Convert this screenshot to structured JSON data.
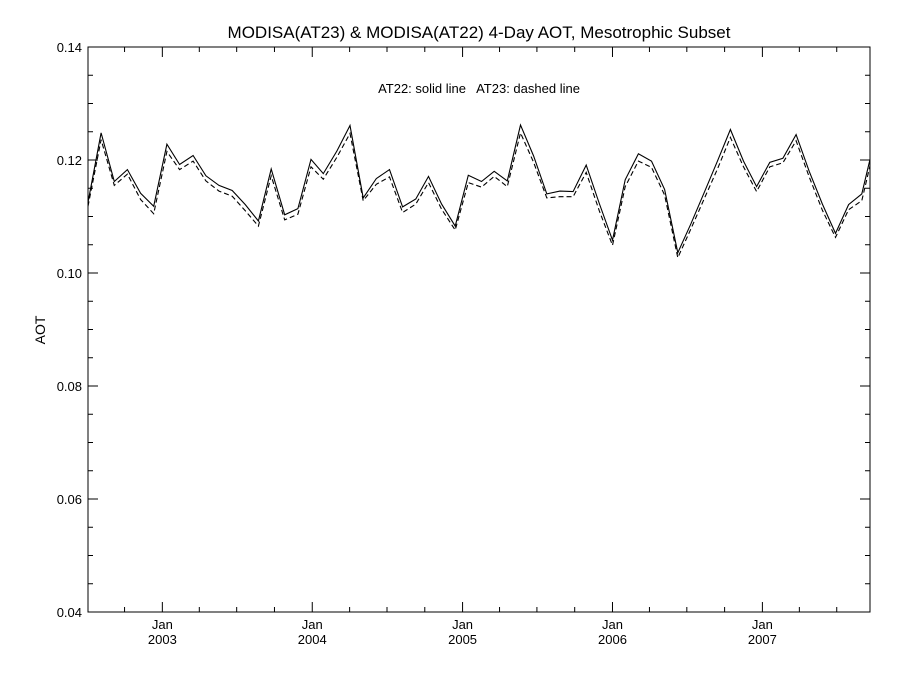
{
  "chart_data": {
    "type": "line",
    "title": "MODISA(AT23) & MODISA(AT22) 4-Day AOT, Mesotrophic Subset",
    "ylabel": "AOT",
    "xlabel": "",
    "annotation": "AT22: solid line   AT23: dashed line",
    "ylim": [
      0.04,
      0.14
    ],
    "xlim": [
      "2002-07-04",
      "2007-09-20"
    ],
    "y_ticks": [
      "0.04",
      "0.06",
      "0.08",
      "0.10",
      "0.12",
      "0.14"
    ],
    "x_ticks": [
      {
        "month": "Jan",
        "year": "2003",
        "date": "2003-01-01"
      },
      {
        "month": "Jan",
        "year": "2004",
        "date": "2004-01-01"
      },
      {
        "month": "Jan",
        "year": "2005",
        "date": "2005-01-01"
      },
      {
        "month": "Jan",
        "year": "2006",
        "date": "2006-01-01"
      },
      {
        "month": "Jan",
        "year": "2007",
        "date": "2007-01-01"
      }
    ],
    "grid": false,
    "legend": "none",
    "x": [
      "2002-07-04",
      "2002-08-05",
      "2002-09-06",
      "2002-10-08",
      "2002-11-09",
      "2002-12-11",
      "2003-01-12",
      "2003-02-12",
      "2003-03-17",
      "2003-04-17",
      "2003-05-19",
      "2003-06-20",
      "2003-07-22",
      "2003-08-23",
      "2003-09-23",
      "2003-10-26",
      "2003-11-27",
      "2003-12-29",
      "2004-01-28",
      "2004-03-01",
      "2004-04-02",
      "2004-05-04",
      "2004-06-05",
      "2004-07-07",
      "2004-08-08",
      "2004-09-09",
      "2004-10-10",
      "2004-11-11",
      "2004-12-14",
      "2005-01-15",
      "2005-02-16",
      "2005-03-19",
      "2005-04-20",
      "2005-05-22",
      "2005-06-23",
      "2005-07-25",
      "2005-08-26",
      "2005-09-27",
      "2005-10-29",
      "2005-11-30",
      "2006-01-01",
      "2006-02-01",
      "2006-03-05",
      "2006-04-06",
      "2006-05-08",
      "2006-06-09",
      "2006-07-11",
      "2006-08-12",
      "2006-09-13",
      "2006-10-15",
      "2006-11-16",
      "2006-12-18",
      "2007-01-19",
      "2007-02-20",
      "2007-03-24",
      "2007-04-25",
      "2007-05-27",
      "2007-06-28",
      "2007-07-30",
      "2007-08-31",
      "2007-09-20"
    ],
    "series": [
      {
        "name": "AT22",
        "style": "solid",
        "color": "#000000",
        "values": [
          0.1125,
          0.1248,
          0.1162,
          0.1183,
          0.1141,
          0.1118,
          0.1228,
          0.1192,
          0.1208,
          0.1172,
          0.1155,
          0.1146,
          0.1121,
          0.1092,
          0.1184,
          0.1103,
          0.1114,
          0.1201,
          0.1176,
          0.1216,
          0.1261,
          0.1133,
          0.1167,
          0.1183,
          0.1117,
          0.1131,
          0.1171,
          0.1122,
          0.1083,
          0.1173,
          0.1162,
          0.118,
          0.1163,
          0.1262,
          0.1207,
          0.114,
          0.1145,
          0.1144,
          0.1191,
          0.1123,
          0.1058,
          0.1165,
          0.1211,
          0.1198,
          0.1148,
          0.1036,
          0.1087,
          0.1142,
          0.1197,
          0.1254,
          0.1198,
          0.1153,
          0.1196,
          0.1203,
          0.1245,
          0.118,
          0.1122,
          0.107,
          0.1121,
          0.114,
          0.1201
        ]
      },
      {
        "name": "AT23",
        "style": "dashed",
        "color": "#000000",
        "values": [
          0.1118,
          0.1236,
          0.1155,
          0.1175,
          0.113,
          0.1105,
          0.1215,
          0.1183,
          0.1198,
          0.1163,
          0.1145,
          0.1136,
          0.111,
          0.1083,
          0.1172,
          0.1094,
          0.1104,
          0.1188,
          0.1166,
          0.1205,
          0.1247,
          0.1128,
          0.1157,
          0.117,
          0.1107,
          0.1122,
          0.116,
          0.1113,
          0.1076,
          0.116,
          0.1152,
          0.1171,
          0.1153,
          0.1248,
          0.1196,
          0.1133,
          0.1135,
          0.1135,
          0.1178,
          0.111,
          0.1049,
          0.1153,
          0.1198,
          0.1187,
          0.1138,
          0.1027,
          0.1078,
          0.1131,
          0.1183,
          0.124,
          0.1188,
          0.1144,
          0.1188,
          0.1195,
          0.1234,
          0.117,
          0.1111,
          0.1063,
          0.1112,
          0.1128,
          0.119
        ]
      }
    ]
  }
}
